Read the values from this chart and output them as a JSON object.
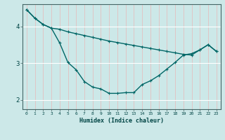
{
  "title": "",
  "xlabel": "Humidex (Indice chaleur)",
  "bg_color": "#cce8e8",
  "grid_color": "#ffffff",
  "line_color": "#006666",
  "xlim": [
    -0.5,
    23.5
  ],
  "ylim": [
    1.75,
    4.6
  ],
  "yticks": [
    2,
    3,
    4
  ],
  "ytick_labels": [
    "2",
    "3",
    "4"
  ],
  "xticks": [
    0,
    1,
    2,
    3,
    4,
    5,
    6,
    7,
    8,
    9,
    10,
    11,
    12,
    13,
    14,
    15,
    16,
    17,
    18,
    19,
    20,
    21,
    22,
    23
  ],
  "series1_x": [
    0,
    1,
    2,
    3,
    4,
    5,
    6,
    7,
    8,
    9,
    10,
    11,
    12,
    13,
    14,
    15,
    16,
    17,
    18,
    19,
    20,
    21,
    22,
    23
  ],
  "series1_y": [
    4.45,
    4.22,
    4.05,
    3.95,
    3.92,
    3.85,
    3.8,
    3.75,
    3.7,
    3.65,
    3.6,
    3.56,
    3.52,
    3.48,
    3.44,
    3.4,
    3.36,
    3.32,
    3.28,
    3.24,
    3.22,
    3.36,
    3.5,
    3.32
  ],
  "series2_x": [
    0,
    1,
    2,
    3,
    4,
    5,
    6,
    7,
    8,
    9,
    10,
    11,
    12,
    13,
    14,
    15,
    16,
    17,
    18,
    19,
    20,
    21,
    22,
    23
  ],
  "series2_y": [
    4.45,
    4.22,
    4.05,
    3.95,
    3.55,
    3.02,
    2.82,
    2.5,
    2.35,
    2.3,
    2.18,
    2.18,
    2.2,
    2.2,
    2.42,
    2.52,
    2.66,
    2.84,
    3.02,
    3.22,
    3.26,
    3.36,
    3.5,
    3.32
  ]
}
